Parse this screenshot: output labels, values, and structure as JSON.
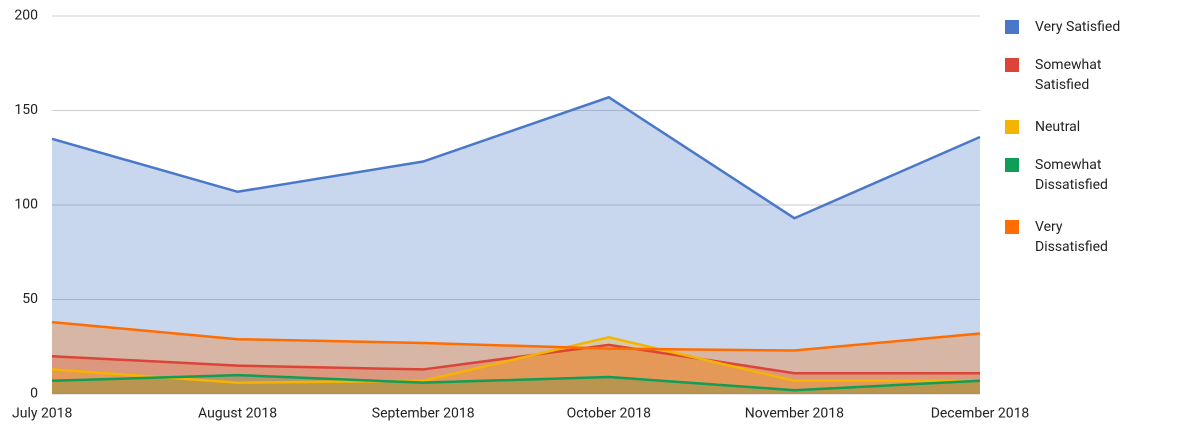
{
  "chart_data": {
    "type": "area",
    "categories": [
      "July 2018",
      "August 2018",
      "September 2018",
      "October 2018",
      "November 2018",
      "December 2018"
    ],
    "series": [
      {
        "name": "Very Satisfied",
        "color": "#4a78c8",
        "values": [
          135,
          107,
          123,
          157,
          93,
          136
        ]
      },
      {
        "name": "Somewhat Satisfied",
        "color": "#db4437",
        "values": [
          20,
          15,
          13,
          26,
          11,
          11
        ]
      },
      {
        "name": "Neutral",
        "color": "#f4b400",
        "values": [
          13,
          6,
          7,
          30,
          7,
          7
        ]
      },
      {
        "name": "Somewhat Dissatisfied",
        "color": "#0f9d58",
        "values": [
          7,
          10,
          6,
          9,
          2,
          7
        ]
      },
      {
        "name": "Very Dissatisfied",
        "color": "#ff6d01",
        "values": [
          38,
          29,
          27,
          24,
          23,
          32
        ]
      }
    ],
    "ylim": [
      0,
      200
    ],
    "yticks": [
      0,
      50,
      100,
      150,
      200
    ],
    "grid": true,
    "legend": "right"
  }
}
